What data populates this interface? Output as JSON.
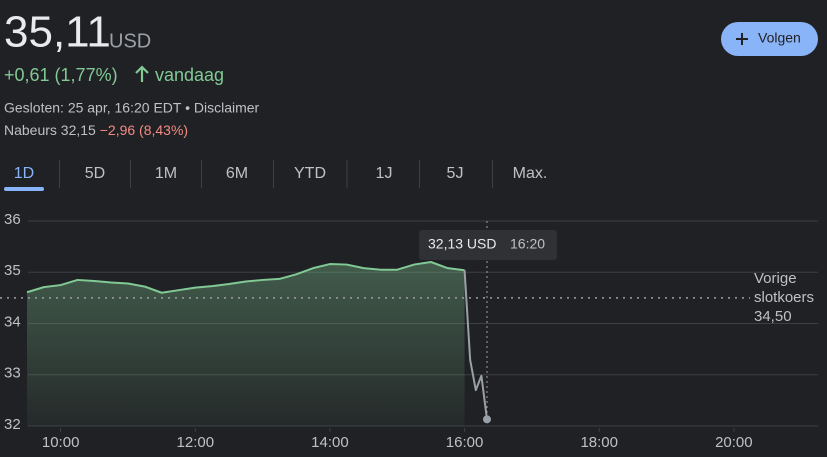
{
  "header": {
    "price": "35,11",
    "currency": "USD",
    "change": "+0,61 (1,77%)",
    "change_period": "vandaag",
    "status": "Gesloten: 25 apr, 16:20 EDT • Disclaimer",
    "afterhours_label": "Nabeurs 32,15",
    "afterhours_change": "−2,96 (8,43%)",
    "follow_button": "Volgen"
  },
  "tabs": [
    "1D",
    "5D",
    "1M",
    "6M",
    "YTD",
    "1J",
    "5J",
    "Max."
  ],
  "active_tab": 0,
  "chart_data": {
    "type": "line",
    "x": [
      9.5,
      9.75,
      10,
      10.25,
      10.5,
      10.75,
      11,
      11.25,
      11.5,
      11.75,
      12,
      12.25,
      12.5,
      12.75,
      13,
      13.25,
      13.5,
      13.75,
      14,
      14.25,
      14.5,
      14.75,
      15,
      15.25,
      15.5,
      15.75,
      16,
      16.083,
      16.167,
      16.25,
      16.333
    ],
    "series": [
      {
        "color": "#81c995",
        "values": [
          34.61,
          34.71,
          34.75,
          34.85,
          34.83,
          34.8,
          34.78,
          34.72,
          34.6,
          34.65,
          34.7,
          34.73,
          34.77,
          34.82,
          34.85,
          34.87,
          34.96,
          35.08,
          35.16,
          35.15,
          35.08,
          35.05,
          35.05,
          35.15,
          35.2,
          35.08,
          35.04,
          null,
          null,
          null,
          null
        ]
      },
      {
        "color": "#9aa0a6",
        "values": [
          null,
          null,
          null,
          null,
          null,
          null,
          null,
          null,
          null,
          null,
          null,
          null,
          null,
          null,
          null,
          null,
          null,
          null,
          null,
          null,
          null,
          null,
          null,
          null,
          null,
          null,
          35.04,
          33.29,
          32.7,
          32.98,
          32.13
        ]
      }
    ],
    "xlim": [
      9.5,
      21.25
    ],
    "xticks": [
      {
        "value": 10,
        "label": "10:00"
      },
      {
        "value": 12,
        "label": "12:00"
      },
      {
        "value": 14,
        "label": "14:00"
      },
      {
        "value": 16,
        "label": "16:00"
      },
      {
        "value": 18,
        "label": "18:00"
      },
      {
        "value": 20,
        "label": "20:00"
      }
    ],
    "ylim": [
      32,
      36
    ],
    "yticks": [
      32,
      33,
      34,
      35,
      36
    ],
    "grid": true,
    "prev_close": {
      "value": 34.5,
      "label": "34,50"
    },
    "prev_close_label": [
      "Vorige",
      "slotkoers"
    ],
    "tooltip": {
      "x": 16.333,
      "price": "32,13 USD",
      "time": "16:20"
    }
  }
}
